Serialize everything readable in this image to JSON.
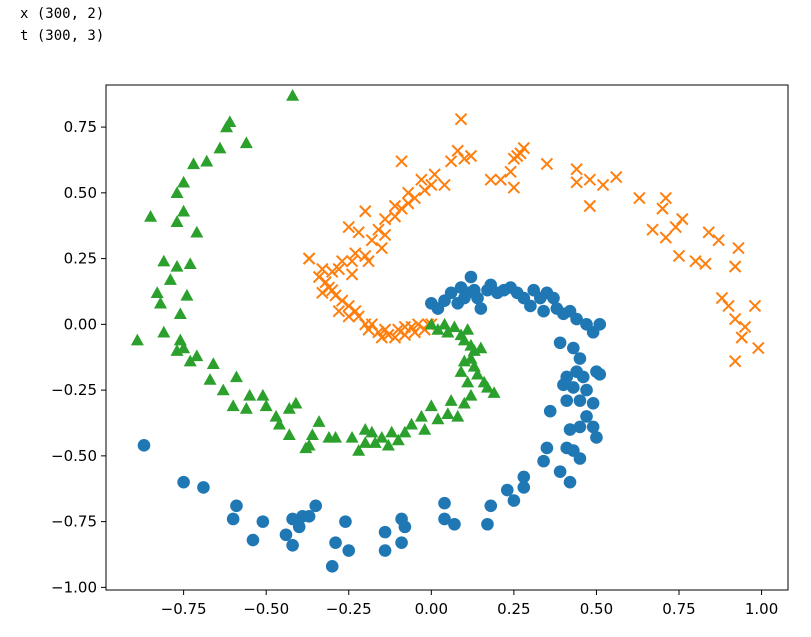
{
  "output": {
    "line1": "x (300, 2)",
    "line2": "t (300, 3)"
  },
  "chart_data": {
    "type": "scatter",
    "title": "",
    "xlabel": "",
    "ylabel": "",
    "xlim": [
      -0.985,
      1.08
    ],
    "ylim": [
      -1.01,
      0.91
    ],
    "xticks": [
      -0.75,
      -0.5,
      -0.25,
      0.0,
      0.25,
      0.5,
      0.75,
      1.0
    ],
    "xtick_labels": [
      "−0.75",
      "−0.50",
      "−0.25",
      "0.00",
      "0.25",
      "0.50",
      "0.75",
      "1.00"
    ],
    "yticks": [
      -1.0,
      -0.75,
      -0.5,
      -0.25,
      0.0,
      0.25,
      0.5,
      0.75
    ],
    "ytick_labels": [
      "−1.00",
      "−0.75",
      "−0.50",
      "−0.25",
      "0.00",
      "0.25",
      "0.50",
      "0.75"
    ],
    "grid": false,
    "legend": "none",
    "series": [
      {
        "marker": "circle",
        "color": "#1f77b4",
        "points": [
          [
            0.0,
            0.08
          ],
          [
            0.02,
            0.06
          ],
          [
            0.04,
            0.09
          ],
          [
            0.06,
            0.12
          ],
          [
            0.08,
            0.08
          ],
          [
            0.09,
            0.14
          ],
          [
            0.1,
            0.1
          ],
          [
            0.11,
            0.12
          ],
          [
            0.12,
            0.18
          ],
          [
            0.13,
            0.13
          ],
          [
            0.14,
            0.1
          ],
          [
            0.15,
            0.06
          ],
          [
            0.17,
            0.13
          ],
          [
            0.18,
            0.15
          ],
          [
            0.2,
            0.12
          ],
          [
            0.22,
            0.13
          ],
          [
            0.24,
            0.14
          ],
          [
            0.26,
            0.12
          ],
          [
            0.28,
            0.1
          ],
          [
            0.31,
            0.13
          ],
          [
            0.33,
            0.1
          ],
          [
            0.35,
            0.12
          ],
          [
            0.37,
            0.1
          ],
          [
            0.3,
            0.07
          ],
          [
            0.34,
            0.05
          ],
          [
            0.38,
            0.06
          ],
          [
            0.4,
            0.04
          ],
          [
            0.42,
            0.05
          ],
          [
            0.44,
            0.02
          ],
          [
            0.47,
            0.0
          ],
          [
            0.49,
            -0.03
          ],
          [
            0.51,
            0.0
          ],
          [
            0.39,
            -0.07
          ],
          [
            0.43,
            -0.09
          ],
          [
            0.45,
            -0.13
          ],
          [
            0.44,
            -0.18
          ],
          [
            0.41,
            -0.2
          ],
          [
            0.4,
            -0.23
          ],
          [
            0.43,
            -0.24
          ],
          [
            0.46,
            -0.2
          ],
          [
            0.47,
            -0.25
          ],
          [
            0.5,
            -0.18
          ],
          [
            0.51,
            -0.19
          ],
          [
            0.49,
            -0.3
          ],
          [
            0.47,
            -0.35
          ],
          [
            0.45,
            -0.29
          ],
          [
            0.41,
            -0.29
          ],
          [
            0.36,
            -0.33
          ],
          [
            0.42,
            -0.4
          ],
          [
            0.45,
            -0.39
          ],
          [
            0.49,
            -0.39
          ],
          [
            0.5,
            -0.43
          ],
          [
            0.41,
            -0.47
          ],
          [
            0.43,
            -0.48
          ],
          [
            0.35,
            -0.47
          ],
          [
            0.34,
            -0.52
          ],
          [
            0.45,
            -0.51
          ],
          [
            0.39,
            -0.56
          ],
          [
            0.28,
            -0.58
          ],
          [
            0.28,
            -0.62
          ],
          [
            0.23,
            -0.63
          ],
          [
            0.25,
            -0.67
          ],
          [
            0.42,
            -0.6
          ],
          [
            0.18,
            -0.69
          ],
          [
            0.17,
            -0.76
          ],
          [
            0.04,
            -0.68
          ],
          [
            0.04,
            -0.74
          ],
          [
            0.07,
            -0.76
          ],
          [
            -0.09,
            -0.74
          ],
          [
            -0.08,
            -0.77
          ],
          [
            -0.09,
            -0.83
          ],
          [
            -0.14,
            -0.79
          ],
          [
            -0.14,
            -0.86
          ],
          [
            -0.25,
            -0.86
          ],
          [
            -0.29,
            -0.83
          ],
          [
            -0.3,
            -0.92
          ],
          [
            -0.26,
            -0.75
          ],
          [
            -0.35,
            -0.69
          ],
          [
            -0.37,
            -0.73
          ],
          [
            -0.39,
            -0.73
          ],
          [
            -0.42,
            -0.74
          ],
          [
            -0.4,
            -0.77
          ],
          [
            -0.44,
            -0.8
          ],
          [
            -0.42,
            -0.84
          ],
          [
            -0.54,
            -0.82
          ],
          [
            -0.51,
            -0.75
          ],
          [
            -0.59,
            -0.69
          ],
          [
            -0.6,
            -0.74
          ],
          [
            -0.69,
            -0.62
          ],
          [
            -0.75,
            -0.6
          ],
          [
            -0.87,
            -0.46
          ]
        ]
      },
      {
        "marker": "x",
        "color": "#ff7f0e",
        "points": [
          [
            0.0,
            0.0
          ],
          [
            -0.01,
            0.0
          ],
          [
            -0.02,
            -0.02
          ],
          [
            -0.04,
            0.0
          ],
          [
            -0.05,
            -0.03
          ],
          [
            -0.06,
            -0.01
          ],
          [
            -0.08,
            -0.01
          ],
          [
            -0.08,
            -0.04
          ],
          [
            -0.1,
            -0.02
          ],
          [
            -0.11,
            -0.05
          ],
          [
            -0.13,
            -0.04
          ],
          [
            -0.14,
            -0.02
          ],
          [
            -0.15,
            -0.05
          ],
          [
            -0.16,
            -0.03
          ],
          [
            -0.18,
            0.0
          ],
          [
            -0.19,
            -0.02
          ],
          [
            -0.2,
            0.0
          ],
          [
            -0.22,
            0.03
          ],
          [
            -0.23,
            0.05
          ],
          [
            -0.25,
            0.03
          ],
          [
            -0.25,
            0.07
          ],
          [
            -0.27,
            0.09
          ],
          [
            -0.28,
            0.05
          ],
          [
            -0.29,
            0.11
          ],
          [
            -0.3,
            0.13
          ],
          [
            -0.31,
            0.14
          ],
          [
            -0.32,
            0.16
          ],
          [
            -0.33,
            0.12
          ],
          [
            -0.34,
            0.18
          ],
          [
            -0.33,
            0.21
          ],
          [
            -0.3,
            0.2
          ],
          [
            -0.28,
            0.21
          ],
          [
            -0.27,
            0.24
          ],
          [
            -0.24,
            0.24
          ],
          [
            -0.24,
            0.19
          ],
          [
            -0.23,
            0.27
          ],
          [
            -0.2,
            0.26
          ],
          [
            -0.19,
            0.24
          ],
          [
            -0.18,
            0.32
          ],
          [
            -0.15,
            0.29
          ],
          [
            -0.14,
            0.34
          ],
          [
            -0.16,
            0.36
          ],
          [
            -0.14,
            0.4
          ],
          [
            -0.11,
            0.41
          ],
          [
            -0.09,
            0.44
          ],
          [
            -0.07,
            0.46
          ],
          [
            -0.05,
            0.48
          ],
          [
            -0.02,
            0.51
          ],
          [
            0.0,
            0.53
          ],
          [
            -0.03,
            0.55
          ],
          [
            -0.07,
            0.5
          ],
          [
            -0.11,
            0.45
          ],
          [
            -0.09,
            0.62
          ],
          [
            0.01,
            0.57
          ],
          [
            0.04,
            0.53
          ],
          [
            0.06,
            0.62
          ],
          [
            0.08,
            0.66
          ],
          [
            0.1,
            0.63
          ],
          [
            0.12,
            0.64
          ],
          [
            0.18,
            0.55
          ],
          [
            0.21,
            0.55
          ],
          [
            0.24,
            0.58
          ],
          [
            0.25,
            0.52
          ],
          [
            0.26,
            0.64
          ],
          [
            0.27,
            0.65
          ],
          [
            0.28,
            0.67
          ],
          [
            0.25,
            0.63
          ],
          [
            0.09,
            0.78
          ],
          [
            0.35,
            0.61
          ],
          [
            0.44,
            0.54
          ],
          [
            0.44,
            0.59
          ],
          [
            0.48,
            0.55
          ],
          [
            0.48,
            0.45
          ],
          [
            0.52,
            0.53
          ],
          [
            0.56,
            0.56
          ],
          [
            0.63,
            0.48
          ],
          [
            0.71,
            0.48
          ],
          [
            0.7,
            0.44
          ],
          [
            0.67,
            0.36
          ],
          [
            0.71,
            0.33
          ],
          [
            0.74,
            0.37
          ],
          [
            0.76,
            0.4
          ],
          [
            0.75,
            0.26
          ],
          [
            0.8,
            0.24
          ],
          [
            0.83,
            0.23
          ],
          [
            0.84,
            0.35
          ],
          [
            0.87,
            0.32
          ],
          [
            0.92,
            0.22
          ],
          [
            0.93,
            0.29
          ],
          [
            0.88,
            0.1
          ],
          [
            0.9,
            0.07
          ],
          [
            0.92,
            0.02
          ],
          [
            0.95,
            -0.01
          ],
          [
            0.94,
            -0.05
          ],
          [
            0.98,
            0.07
          ],
          [
            0.99,
            -0.09
          ],
          [
            0.92,
            -0.14
          ],
          [
            -0.37,
            0.25
          ],
          [
            -0.37,
            0.25
          ],
          [
            -0.2,
            0.43
          ],
          [
            -0.22,
            0.35
          ],
          [
            -0.25,
            0.37
          ]
        ]
      },
      {
        "marker": "triangle",
        "color": "#2ca02c",
        "points": [
          [
            0.0,
            0.0
          ],
          [
            0.02,
            -0.02
          ],
          [
            0.04,
            0.0
          ],
          [
            0.05,
            -0.03
          ],
          [
            0.07,
            -0.01
          ],
          [
            0.09,
            -0.04
          ],
          [
            0.1,
            -0.06
          ],
          [
            0.11,
            -0.02
          ],
          [
            0.12,
            -0.08
          ],
          [
            0.13,
            -0.1
          ],
          [
            0.12,
            -0.13
          ],
          [
            0.13,
            -0.16
          ],
          [
            0.1,
            -0.14
          ],
          [
            0.09,
            -0.18
          ],
          [
            0.11,
            -0.22
          ],
          [
            0.14,
            -0.19
          ],
          [
            0.15,
            -0.09
          ],
          [
            0.16,
            -0.22
          ],
          [
            0.17,
            -0.24
          ],
          [
            0.19,
            -0.26
          ],
          [
            0.12,
            -0.27
          ],
          [
            0.1,
            -0.3
          ],
          [
            0.08,
            -0.35
          ],
          [
            0.06,
            -0.29
          ],
          [
            0.05,
            -0.34
          ],
          [
            0.02,
            -0.36
          ],
          [
            0.0,
            -0.31
          ],
          [
            -0.02,
            -0.4
          ],
          [
            -0.03,
            -0.35
          ],
          [
            -0.06,
            -0.38
          ],
          [
            -0.08,
            -0.41
          ],
          [
            -0.1,
            -0.44
          ],
          [
            -0.12,
            -0.41
          ],
          [
            -0.13,
            -0.46
          ],
          [
            -0.15,
            -0.43
          ],
          [
            -0.17,
            -0.45
          ],
          [
            -0.18,
            -0.41
          ],
          [
            -0.2,
            -0.45
          ],
          [
            -0.22,
            -0.48
          ],
          [
            -0.2,
            -0.4
          ],
          [
            -0.24,
            -0.43
          ],
          [
            -0.29,
            -0.43
          ],
          [
            -0.31,
            -0.43
          ],
          [
            -0.34,
            -0.37
          ],
          [
            -0.36,
            -0.42
          ],
          [
            -0.37,
            -0.46
          ],
          [
            -0.41,
            -0.3
          ],
          [
            -0.43,
            -0.32
          ],
          [
            -0.47,
            -0.35
          ],
          [
            -0.5,
            -0.31
          ],
          [
            -0.51,
            -0.27
          ],
          [
            -0.55,
            -0.27
          ],
          [
            -0.56,
            -0.32
          ],
          [
            -0.6,
            -0.31
          ],
          [
            -0.59,
            -0.2
          ],
          [
            -0.63,
            -0.25
          ],
          [
            -0.66,
            -0.15
          ],
          [
            -0.67,
            -0.21
          ],
          [
            -0.71,
            -0.12
          ],
          [
            -0.73,
            -0.14
          ],
          [
            -0.75,
            -0.09
          ],
          [
            -0.77,
            -0.1
          ],
          [
            -0.76,
            -0.06
          ],
          [
            -0.81,
            -0.03
          ],
          [
            -0.82,
            0.08
          ],
          [
            -0.83,
            0.12
          ],
          [
            -0.89,
            -0.06
          ],
          [
            -0.76,
            0.04
          ],
          [
            -0.79,
            0.17
          ],
          [
            -0.77,
            0.22
          ],
          [
            -0.74,
            0.11
          ],
          [
            -0.73,
            0.23
          ],
          [
            -0.71,
            0.35
          ],
          [
            -0.75,
            0.43
          ],
          [
            -0.77,
            0.39
          ],
          [
            -0.81,
            0.24
          ],
          [
            -0.85,
            0.41
          ],
          [
            -0.77,
            0.5
          ],
          [
            -0.75,
            0.54
          ],
          [
            -0.72,
            0.61
          ],
          [
            -0.68,
            0.62
          ],
          [
            -0.64,
            0.67
          ],
          [
            -0.62,
            0.75
          ],
          [
            -0.61,
            0.77
          ],
          [
            -0.56,
            0.69
          ],
          [
            -0.42,
            0.87
          ],
          [
            -0.43,
            -0.42
          ],
          [
            -0.46,
            -0.38
          ],
          [
            -0.38,
            -0.47
          ]
        ]
      }
    ]
  }
}
